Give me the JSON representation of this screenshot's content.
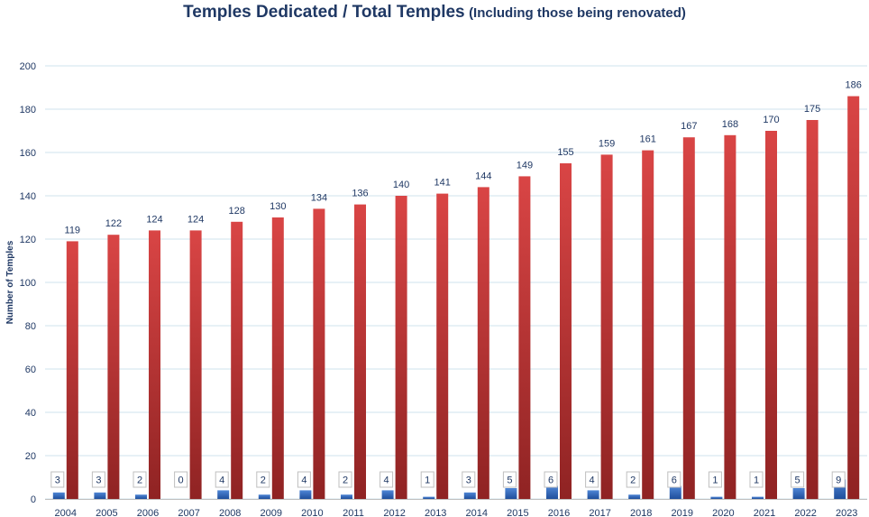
{
  "chart_data": {
    "type": "bar",
    "title": "Temples Dedicated / Total Temples",
    "subtitle": "(Including those being renovated)",
    "xlabel": "",
    "ylabel": "Number of Temples",
    "ylim": [
      0,
      200
    ],
    "yticks": [
      0,
      20,
      40,
      60,
      80,
      100,
      120,
      140,
      160,
      180,
      200
    ],
    "grid": true,
    "categories": [
      "2004",
      "2005",
      "2006",
      "2007",
      "2008",
      "2009",
      "2010",
      "2011",
      "2012",
      "2013",
      "2014",
      "2015",
      "2016",
      "2017",
      "2018",
      "2019",
      "2020",
      "2021",
      "2022",
      "2023"
    ],
    "series": [
      {
        "values": [
          3,
          3,
          2,
          0,
          4,
          2,
          4,
          2,
          4,
          1,
          3,
          5,
          6,
          4,
          2,
          6,
          1,
          1,
          5,
          9
        ],
        "color": "#2f6bc4"
      },
      {
        "values": [
          119,
          122,
          124,
          124,
          128,
          130,
          134,
          136,
          140,
          141,
          144,
          149,
          155,
          159,
          161,
          167,
          168,
          170,
          175,
          186
        ],
        "color": "#c93a3a"
      }
    ]
  },
  "colors": {
    "title": "#1f3864",
    "grid": "#cfe3ec",
    "dedicated_bar": "#2f6bc4",
    "total_bar": "#c93a3a",
    "total_bar_dark": "#8f2323"
  }
}
